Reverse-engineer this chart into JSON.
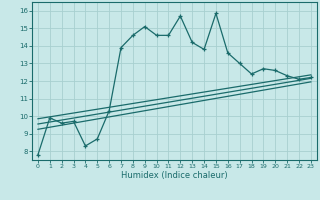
{
  "xlabel": "Humidex (Indice chaleur)",
  "bg_color": "#c8e8e8",
  "grid_color": "#a8d0d0",
  "line_color": "#1a6b6b",
  "xlim": [
    -0.5,
    23.5
  ],
  "ylim": [
    7.5,
    16.5
  ],
  "xticks": [
    0,
    1,
    2,
    3,
    4,
    5,
    6,
    7,
    8,
    9,
    10,
    11,
    12,
    13,
    14,
    15,
    16,
    17,
    18,
    19,
    20,
    21,
    22,
    23
  ],
  "yticks": [
    8,
    9,
    10,
    11,
    12,
    13,
    14,
    15,
    16
  ],
  "main_x": [
    0,
    1,
    2,
    3,
    4,
    5,
    6,
    7,
    8,
    9,
    10,
    11,
    12,
    13,
    14,
    15,
    16,
    17,
    18,
    19,
    20,
    21,
    22,
    23
  ],
  "main_y": [
    7.8,
    9.9,
    9.6,
    9.7,
    8.3,
    8.7,
    10.3,
    13.9,
    14.6,
    15.1,
    14.6,
    14.6,
    15.7,
    14.2,
    13.8,
    15.85,
    13.6,
    13.0,
    12.4,
    12.7,
    12.6,
    12.3,
    12.1,
    12.2
  ],
  "line2_x": [
    0,
    23
  ],
  "line2_y": [
    9.55,
    12.15
  ],
  "line3_x": [
    0,
    23
  ],
  "line3_y": [
    9.85,
    12.35
  ],
  "line4_x": [
    0,
    23
  ],
  "line4_y": [
    9.25,
    11.95
  ]
}
